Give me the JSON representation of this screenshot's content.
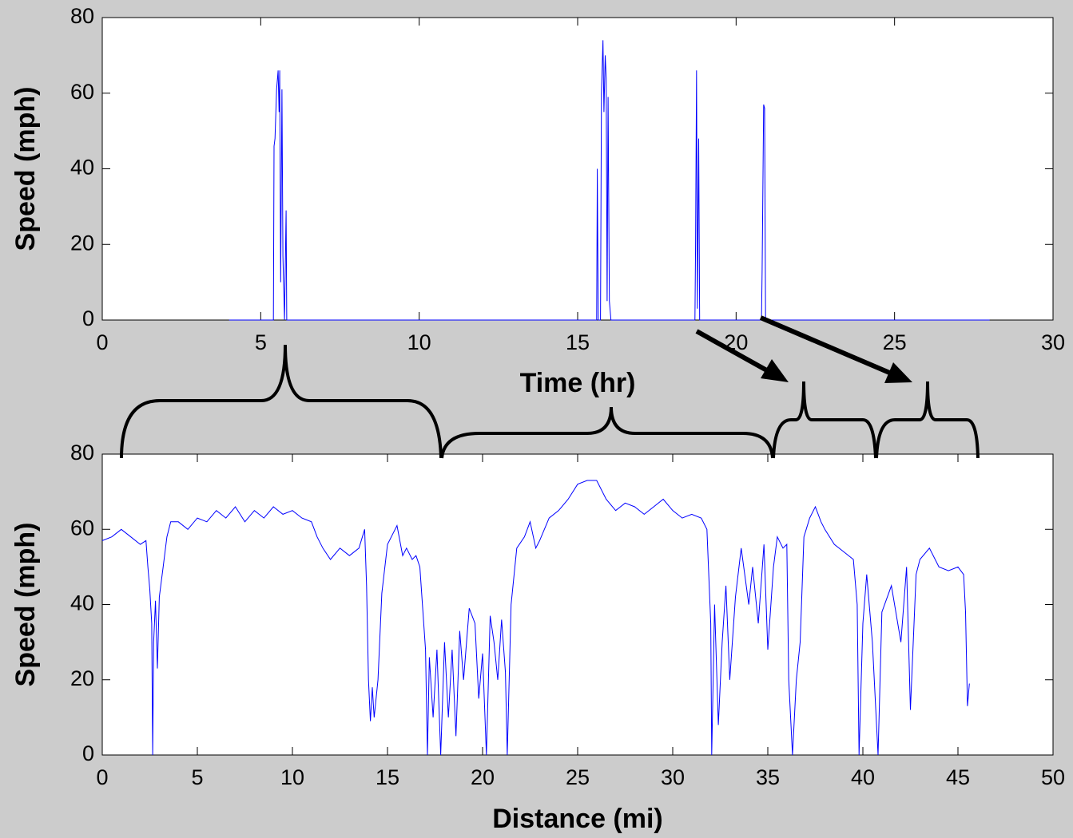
{
  "chart_data": [
    {
      "type": "line",
      "xlabel": "Time (hr)",
      "ylabel": "Speed (mph)",
      "xlim": [
        0,
        30
      ],
      "ylim": [
        0,
        80
      ],
      "xticks": [
        0,
        5,
        10,
        15,
        20,
        25,
        30
      ],
      "yticks": [
        0,
        20,
        40,
        60,
        80
      ],
      "color": "#0000ff",
      "x": [
        4,
        5.4,
        5.42,
        5.45,
        5.5,
        5.55,
        5.58,
        5.6,
        5.63,
        5.67,
        5.7,
        5.75,
        5.8,
        5.82,
        15.6,
        15.62,
        15.65,
        15.72,
        15.75,
        15.8,
        15.83,
        15.87,
        15.9,
        15.93,
        15.96,
        16.0,
        16.05,
        18.7,
        18.72,
        18.75,
        18.78,
        18.82,
        18.85,
        20.8,
        20.82,
        20.87,
        20.9,
        20.93,
        28
      ],
      "values": [
        0,
        0,
        46,
        48,
        61,
        66,
        55,
        66,
        10,
        61,
        17,
        0,
        29,
        0,
        0,
        40,
        0,
        0,
        60,
        74,
        55,
        70,
        64,
        5,
        59,
        5,
        0,
        0,
        20,
        66,
        3,
        48,
        0,
        0,
        13,
        57,
        56,
        0,
        0
      ]
    },
    {
      "type": "line",
      "xlabel": "Distance (mi)",
      "ylabel": "Speed (mph)",
      "xlim": [
        0,
        50
      ],
      "ylim": [
        0,
        80
      ],
      "xticks": [
        0,
        5,
        10,
        15,
        20,
        25,
        30,
        35,
        40,
        45,
        50
      ],
      "yticks": [
        0,
        20,
        40,
        60,
        80
      ],
      "color": "#0000ff",
      "x": [
        0,
        0.5,
        1,
        1.5,
        2,
        2.3,
        2.4,
        2.5,
        2.6,
        2.65,
        2.7,
        2.8,
        2.9,
        3.0,
        3.2,
        3.4,
        3.6,
        4,
        4.5,
        5,
        5.5,
        6,
        6.5,
        7,
        7.5,
        8,
        8.5,
        9,
        9.5,
        10,
        10.5,
        11,
        11.3,
        11.6,
        12,
        12.5,
        13,
        13.5,
        13.8,
        13.9,
        14,
        14.1,
        14.2,
        14.3,
        14.5,
        14.7,
        15,
        15.5,
        15.8,
        16,
        16.3,
        16.5,
        16.7,
        17,
        17.1,
        17.2,
        17.4,
        17.6,
        17.8,
        18,
        18.2,
        18.4,
        18.6,
        18.8,
        19,
        19.3,
        19.6,
        19.8,
        20,
        20.2,
        20.4,
        20.6,
        20.8,
        21,
        21.2,
        21.3,
        21.5,
        21.8,
        22.2,
        22.5,
        22.8,
        23,
        23.5,
        24,
        24.5,
        25,
        25.5,
        26,
        26.5,
        27,
        27.5,
        28,
        28.5,
        29,
        29.5,
        30,
        30.5,
        31,
        31.5,
        31.8,
        32,
        32.05,
        32.2,
        32.4,
        32.6,
        32.8,
        33,
        33.3,
        33.6,
        34,
        34.2,
        34.5,
        34.8,
        35,
        35.3,
        35.5,
        35.8,
        36,
        36.1,
        36.3,
        36.5,
        36.7,
        36.9,
        37.2,
        37.5,
        37.8,
        38,
        38.5,
        39,
        39.5,
        39.7,
        39.8,
        40,
        40.2,
        40.5,
        40.8,
        41,
        41.5,
        42,
        42.3,
        42.5,
        42.8,
        43,
        43.5,
        44,
        44.5,
        45,
        45.3,
        45.4,
        45.5,
        45.6
      ],
      "values": [
        57,
        58,
        60,
        58,
        56,
        57,
        50,
        44,
        35,
        0,
        30,
        41,
        23,
        42,
        50,
        58,
        62,
        62,
        60,
        63,
        62,
        65,
        63,
        66,
        62,
        65,
        63,
        66,
        64,
        65,
        63,
        62,
        58,
        55,
        52,
        55,
        53,
        55,
        60,
        45,
        20,
        9,
        18,
        10,
        20,
        43,
        56,
        61,
        53,
        55,
        52,
        53,
        50,
        28,
        0,
        26,
        10,
        28,
        0,
        30,
        10,
        28,
        5,
        33,
        20,
        39,
        35,
        15,
        27,
        0,
        37,
        30,
        20,
        36,
        22,
        0,
        40,
        55,
        58,
        62,
        55,
        57,
        63,
        65,
        68,
        72,
        73,
        73,
        68,
        65,
        67,
        66,
        64,
        66,
        68,
        65,
        63,
        64,
        63,
        60,
        35,
        0,
        40,
        8,
        30,
        45,
        20,
        42,
        55,
        40,
        50,
        35,
        56,
        28,
        50,
        58,
        55,
        56,
        20,
        0,
        20,
        30,
        58,
        63,
        66,
        62,
        60,
        56,
        54,
        52,
        40,
        0,
        35,
        48,
        30,
        0,
        38,
        45,
        30,
        50,
        12,
        48,
        52,
        55,
        50,
        49,
        50,
        48,
        38,
        13,
        19
      ]
    }
  ]
}
